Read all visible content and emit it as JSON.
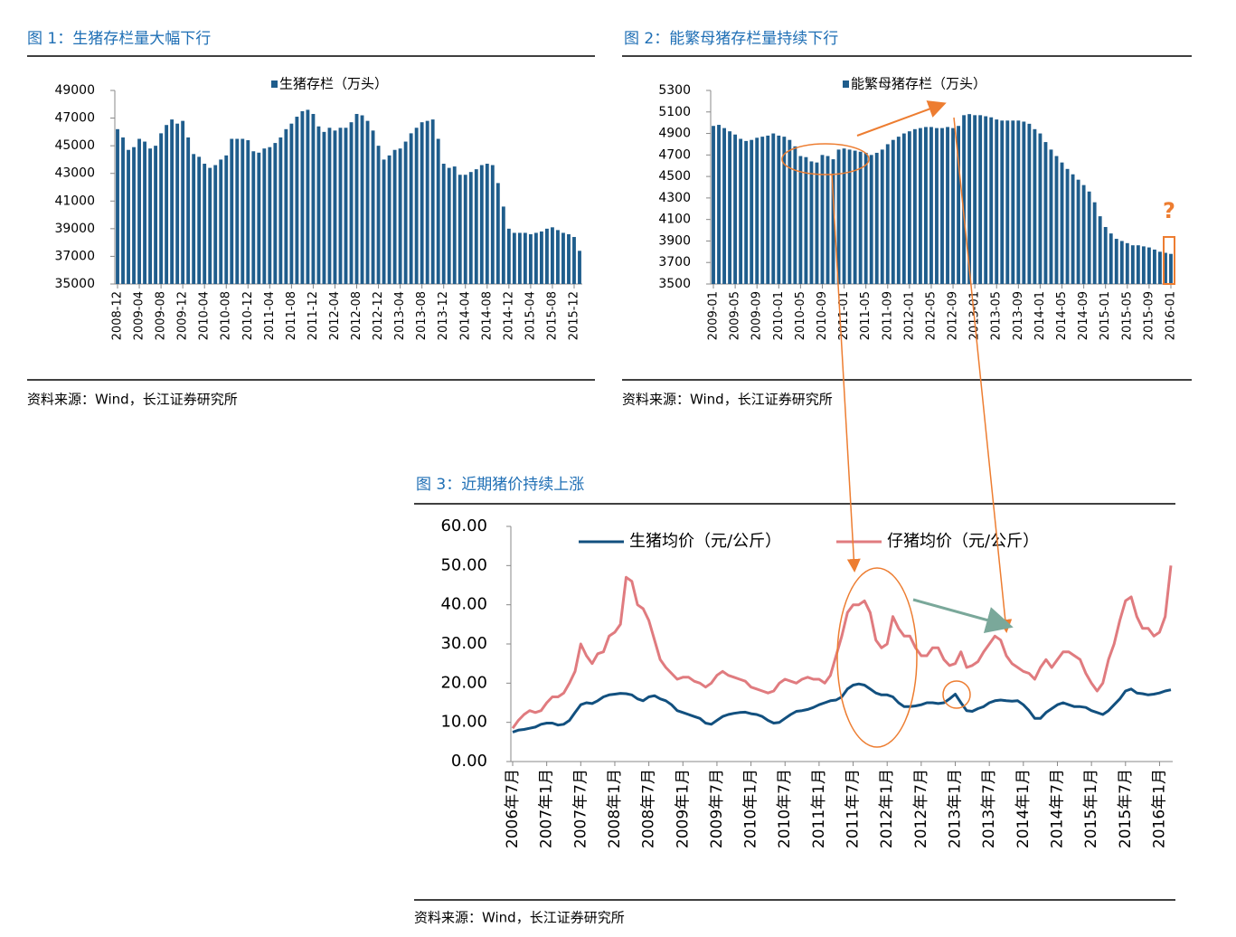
{
  "chart_data": [
    {
      "type": "bar",
      "title": "图 1：生猪存栏量大幅下行",
      "source": "资料来源：Wind，长江证券研究所",
      "categories": [
        "2008-12",
        null,
        null,
        null,
        "2009-04",
        null,
        null,
        null,
        "2009-08",
        null,
        null,
        null,
        "2009-12",
        null,
        null,
        null,
        "2010-04",
        null,
        null,
        null,
        "2010-08",
        null,
        null,
        null,
        "2010-12",
        null,
        null,
        null,
        "2011-04",
        null,
        null,
        null,
        "2011-08",
        null,
        null,
        null,
        "2011-12",
        null,
        null,
        null,
        "2012-04",
        null,
        null,
        null,
        "2012-08",
        null,
        null,
        null,
        "2012-12",
        null,
        null,
        null,
        "2013-04",
        null,
        null,
        null,
        "2013-08",
        null,
        null,
        null,
        "2013-12",
        null,
        null,
        null,
        "2014-04",
        null,
        null,
        null,
        "2014-08",
        null,
        null,
        null,
        "2014-12",
        null,
        null,
        null,
        "2015-04",
        null,
        null,
        null,
        "2015-08",
        null,
        null,
        null,
        "2015-12",
        null
      ],
      "series": [
        {
          "name": "生猪存栏（万头）",
          "color": "#1f5d8c",
          "values": [
            46200,
            45600,
            44700,
            44900,
            45500,
            45300,
            44800,
            45000,
            45900,
            46500,
            46900,
            46600,
            46800,
            45600,
            44400,
            44200,
            43700,
            43400,
            43600,
            44000,
            44300,
            45500,
            45500,
            45500,
            45400,
            44600,
            44500,
            44800,
            44900,
            45200,
            45600,
            46200,
            46600,
            47100,
            47500,
            47600,
            47300,
            46400,
            46000,
            46300,
            46100,
            46300,
            46300,
            46700,
            47300,
            47200,
            46800,
            46100,
            45000,
            44000,
            44300,
            44700,
            44800,
            45300,
            45900,
            46300,
            46700,
            46800,
            46900,
            45500,
            43700,
            43400,
            43500,
            42900,
            42900,
            43100,
            43300,
            43600,
            43700,
            43600,
            42300,
            40600,
            39000,
            38700,
            38700,
            38700,
            38600,
            38700,
            38800,
            39000,
            39100,
            38900,
            38700,
            38600,
            38400,
            37400
          ]
        }
      ],
      "ylim": [
        35000,
        49000
      ],
      "yticks": [
        35000,
        37000,
        39000,
        41000,
        43000,
        45000,
        47000,
        49000
      ]
    },
    {
      "type": "bar",
      "title": "图 2：能繁母猪存栏量持续下行",
      "source": "资料来源：Wind，长江证券研究所",
      "annotation": "?",
      "categories": [
        "2009-01",
        null,
        null,
        null,
        "2009-05",
        null,
        null,
        null,
        "2009-09",
        null,
        null,
        null,
        "2010-01",
        null,
        null,
        null,
        "2010-05",
        null,
        null,
        null,
        "2010-09",
        null,
        null,
        null,
        "2011-01",
        null,
        null,
        null,
        "2011-05",
        null,
        null,
        null,
        "2011-09",
        null,
        null,
        null,
        "2012-01",
        null,
        null,
        null,
        "2012-05",
        null,
        null,
        null,
        "2012-09",
        null,
        null,
        null,
        "2013-01",
        null,
        null,
        null,
        "2013-05",
        null,
        null,
        null,
        "2013-09",
        null,
        null,
        null,
        "2014-01",
        null,
        null,
        null,
        "2014-05",
        null,
        null,
        null,
        "2014-09",
        null,
        null,
        null,
        "2015-01",
        null,
        null,
        null,
        "2015-05",
        null,
        null,
        null,
        "2015-09",
        null,
        null,
        null,
        "2016-01"
      ],
      "series": [
        {
          "name": "能繁母猪存栏（万头）",
          "color": "#1f5d8c",
          "values": [
            4970,
            4980,
            4950,
            4920,
            4890,
            4850,
            4830,
            4840,
            4860,
            4870,
            4880,
            4900,
            4880,
            4870,
            4840,
            4780,
            4690,
            4680,
            4640,
            4630,
            4700,
            4690,
            4660,
            4750,
            4760,
            4750,
            4740,
            4730,
            4720,
            4700,
            4720,
            4750,
            4800,
            4840,
            4870,
            4900,
            4920,
            4940,
            4950,
            4960,
            4960,
            4950,
            4950,
            4960,
            4950,
            4970,
            5070,
            5080,
            5070,
            5070,
            5060,
            5050,
            5030,
            5020,
            5020,
            5020,
            5020,
            5010,
            4990,
            4940,
            4900,
            4820,
            4750,
            4690,
            4630,
            4570,
            4520,
            4470,
            4420,
            4360,
            4260,
            4130,
            4030,
            3970,
            3920,
            3900,
            3880,
            3860,
            3860,
            3850,
            3840,
            3820,
            3800,
            3790,
            3780
          ]
        }
      ],
      "ylim": [
        3500,
        5300
      ],
      "yticks": [
        3500,
        3700,
        3900,
        4100,
        4300,
        4500,
        4700,
        4900,
        5100,
        5300
      ]
    },
    {
      "type": "line",
      "title": "图 3：近期猪价持续上涨",
      "source": "资料来源：Wind，长江证券研究所",
      "categories": [
        "2006年7月",
        null,
        null,
        null,
        null,
        null,
        "2007年1月",
        null,
        null,
        null,
        null,
        null,
        "2007年7月",
        null,
        null,
        null,
        null,
        null,
        "2008年1月",
        null,
        null,
        null,
        null,
        null,
        "2008年7月",
        null,
        null,
        null,
        null,
        null,
        "2009年1月",
        null,
        null,
        null,
        null,
        null,
        "2009年7月",
        null,
        null,
        null,
        null,
        null,
        "2010年1月",
        null,
        null,
        null,
        null,
        null,
        "2010年7月",
        null,
        null,
        null,
        null,
        null,
        "2011年1月",
        null,
        null,
        null,
        null,
        null,
        "2011年7月",
        null,
        null,
        null,
        null,
        null,
        "2012年1月",
        null,
        null,
        null,
        null,
        null,
        "2012年7月",
        null,
        null,
        null,
        null,
        null,
        "2013年1月",
        null,
        null,
        null,
        null,
        null,
        "2013年7月",
        null,
        null,
        null,
        null,
        null,
        "2014年1月",
        null,
        null,
        null,
        null,
        null,
        "2014年7月",
        null,
        null,
        null,
        null,
        null,
        "2015年1月",
        null,
        null,
        null,
        null,
        null,
        "2015年7月",
        null,
        null,
        null,
        null,
        null,
        "2016年1月",
        null,
        null
      ],
      "series": [
        {
          "name": "生猪均价（元/公斤）",
          "color": "#12507f",
          "values": [
            7.5,
            8.0,
            8.2,
            8.5,
            8.8,
            9.5,
            9.8,
            9.8,
            9.3,
            9.5,
            10.5,
            12.5,
            14.5,
            15,
            14.8,
            15.5,
            16.5,
            17,
            17.2,
            17.4,
            17.3,
            17,
            16,
            15.5,
            16.5,
            16.8,
            16,
            15.5,
            14.5,
            13,
            12.5,
            12,
            11.5,
            11,
            9.8,
            9.5,
            10.5,
            11.5,
            12,
            12.3,
            12.5,
            12.6,
            12.2,
            12,
            11.5,
            10.5,
            9.8,
            10,
            11,
            12,
            12.8,
            13,
            13.3,
            13.8,
            14.5,
            15,
            15.5,
            15.7,
            16.5,
            18.5,
            19.5,
            19.8,
            19.5,
            18.5,
            17.5,
            17,
            17,
            16.5,
            15,
            14,
            14,
            14.2,
            14.5,
            15,
            15,
            14.8,
            15,
            16,
            17.2,
            15,
            13,
            12.8,
            13.5,
            14,
            15,
            15.5,
            15.7,
            15.5,
            15.4,
            15.5,
            14.5,
            13,
            11,
            11,
            12.5,
            13.5,
            14.5,
            15,
            14.5,
            14,
            14,
            13.8,
            13,
            12.5,
            12,
            13,
            14.5,
            16,
            18,
            18.5,
            17.5,
            17.3,
            17,
            17.2,
            17.5,
            18,
            18.3
          ]
        },
        {
          "name": "仔猪均价（元/公斤）",
          "color": "#e07b7f",
          "values": [
            8.5,
            10.5,
            12,
            13,
            12.5,
            13,
            15,
            16.5,
            16.5,
            17.5,
            20,
            23,
            30,
            27,
            25,
            27.5,
            28,
            32,
            33,
            35,
            47,
            46,
            40,
            39,
            36,
            31,
            26,
            24,
            22.5,
            21,
            21.5,
            21.5,
            20.5,
            20,
            19,
            20,
            22,
            23,
            22,
            21.5,
            21,
            20.5,
            19,
            18.5,
            18,
            17.5,
            18,
            20,
            21,
            20.5,
            20,
            21,
            21.5,
            21,
            21,
            20,
            22,
            27,
            32,
            38,
            40,
            40,
            41,
            38,
            31,
            29,
            30,
            37,
            34,
            32,
            32,
            29,
            27,
            27,
            29,
            29,
            26,
            24.5,
            25,
            28,
            24,
            24.5,
            25.5,
            28,
            30,
            32,
            31,
            27,
            25,
            24,
            23,
            22.5,
            21,
            24,
            26,
            24,
            26,
            28,
            28,
            27,
            26,
            22.5,
            20,
            18,
            20,
            26,
            30,
            36,
            41,
            42,
            37,
            34,
            34,
            32,
            33,
            37,
            50
          ]
        }
      ],
      "ylim": [
        0,
        60
      ],
      "yticks": [
        {
          "value": 0,
          "label": "0.00"
        },
        {
          "value": 10,
          "label": "10.00"
        },
        {
          "value": 20,
          "label": "20.00"
        },
        {
          "value": 30,
          "label": "30.00"
        },
        {
          "value": 40,
          "label": "40.00"
        },
        {
          "value": 50,
          "label": "50.00"
        },
        {
          "value": 60,
          "label": "60.00"
        }
      ]
    }
  ]
}
